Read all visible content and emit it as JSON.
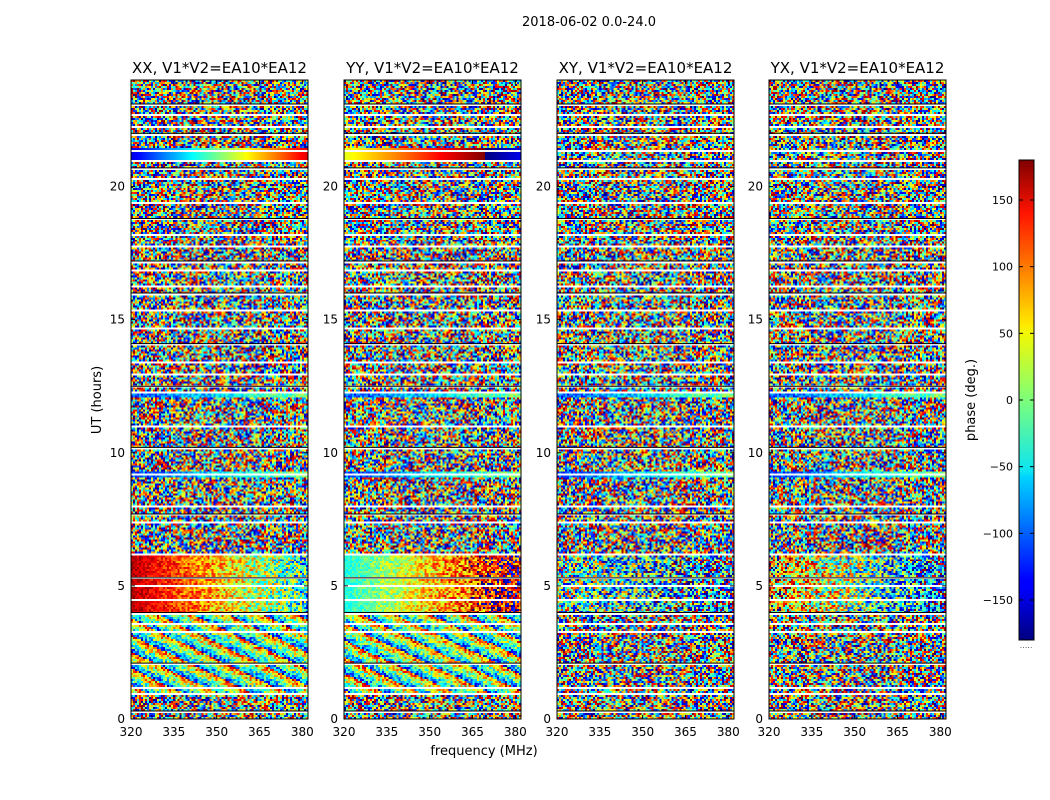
{
  "suptitle": "2018-06-02 0.0-24.0",
  "xlabel": "frequency (MHz)",
  "ylabel": "UT (hours)",
  "colorbar": {
    "label": "phase (deg.)",
    "ticks": [
      150,
      100,
      50,
      0,
      -50,
      -100,
      -150
    ],
    "tick_labels": [
      "150",
      "100",
      "50",
      "0",
      "−50",
      "−100",
      "−150"
    ],
    "range": [
      -180,
      180
    ],
    "colormap": "jet",
    "offset_text": "....."
  },
  "chart_data": {
    "type": "heatmap",
    "title": "2018-06-02 0.0-24.0",
    "xlabel": "frequency (MHz)",
    "ylabel": "UT (hours)",
    "xlim": [
      320,
      382
    ],
    "ylim": [
      0,
      24
    ],
    "x_ticks": [
      320,
      335,
      350,
      365,
      380
    ],
    "y_ticks": [
      0,
      5,
      10,
      15,
      20
    ],
    "value_label": "phase (deg.)",
    "value_range": [
      -180,
      180
    ],
    "grid": false,
    "panels": [
      {
        "title": "XX, V1*V2=EA10*EA12",
        "coherent_features": [
          "phase-wrap band 4.0-6.2 h (dark red at low freq through cyan to yellow at high freq)",
          "fringe stripes 0.9-3.9 h",
          "horizontal band near 21.2 h",
          "band near 12.2 h",
          "band near 9.2 h"
        ]
      },
      {
        "title": "YY, V1*V2=EA10*EA12",
        "coherent_features": [
          "phase-wrap band 4.0-6.2 h (cyan/green at low freq to red/blue at high freq)",
          "fringe stripes 0.9-3.9 h",
          "horizontal band near 21.2 h",
          "band near 12.2 h",
          "band near 9.2 h"
        ]
      },
      {
        "title": "XY, V1*V2=EA10*EA12",
        "coherent_features": [
          "weak phase gradient 4.0-6.2 h"
        ]
      },
      {
        "title": "YX, V1*V2=EA10*EA12",
        "coherent_features": [
          "weak phase gradient 4.0-6.2 h (yellow/red to blue)"
        ]
      }
    ],
    "flagged_gaps_hours": [
      0.3,
      1.0,
      1.2,
      2.1,
      3.3,
      3.6,
      4.0,
      4.5,
      5.0,
      5.3,
      6.2,
      7.4,
      7.7,
      8.0,
      9.2,
      10.2,
      11.0,
      12.3,
      12.5,
      13.0,
      13.4,
      14.1,
      14.7,
      15.4,
      16.0,
      16.3,
      16.9,
      17.2,
      17.8,
      18.2,
      18.8,
      19.4,
      20.3,
      20.7,
      21.0,
      21.4,
      22.0,
      22.3,
      22.7,
      23.1
    ]
  }
}
